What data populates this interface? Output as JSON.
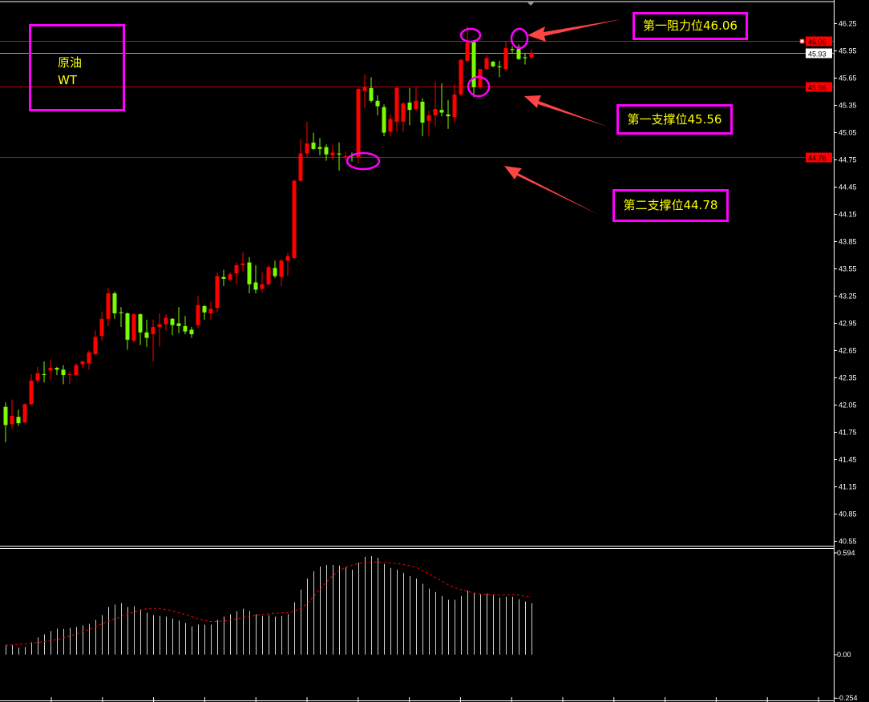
{
  "annotations": {
    "title_line1": "原油",
    "title_line2": "WT",
    "resistance1": "第一阻力位46.06",
    "support1": "第一支撑位45.56",
    "support2": "第二支撑位44.78"
  },
  "colors": {
    "up": "#ff0000",
    "down": "#7cfc00",
    "box": "#ff00ff",
    "text": "#ffff00",
    "arrow": "#ff4444",
    "level": "#ff0000",
    "bid": "#a0a0a0"
  },
  "chart_data": [
    {
      "type": "candlestick",
      "ylim": [
        40.51,
        46.51
      ],
      "yticks": [
        "46.25",
        "45.95",
        "45.65",
        "45.35",
        "45.05",
        "44.75",
        "44.45",
        "44.15",
        "43.85",
        "43.55",
        "43.25",
        "42.95",
        "42.65",
        "42.35",
        "42.05",
        "41.75",
        "41.45",
        "41.15",
        "40.85",
        "40.55"
      ],
      "levels": [
        {
          "value": 46.06,
          "label": "46.06",
          "kind": "resistance"
        },
        {
          "value": 45.93,
          "label": "45.93",
          "kind": "last-price"
        },
        {
          "value": 45.56,
          "label": "45.56",
          "kind": "support"
        },
        {
          "value": 44.78,
          "label": "44.78",
          "kind": "support"
        }
      ],
      "ohlc": [
        [
          42.03,
          42.08,
          41.64,
          41.83
        ],
        [
          41.84,
          42.11,
          41.79,
          41.93
        ],
        [
          41.92,
          42.0,
          41.82,
          41.85
        ],
        [
          41.86,
          42.07,
          41.85,
          42.06
        ],
        [
          42.06,
          42.39,
          42.05,
          42.32
        ],
        [
          42.32,
          42.47,
          42.29,
          42.4
        ],
        [
          42.39,
          42.53,
          42.3,
          42.38
        ],
        [
          42.43,
          42.55,
          42.33,
          42.46
        ],
        [
          42.46,
          42.47,
          42.38,
          42.44
        ],
        [
          42.44,
          42.49,
          42.28,
          42.38
        ],
        [
          42.38,
          42.42,
          42.28,
          42.39
        ],
        [
          42.38,
          42.51,
          42.37,
          42.49
        ],
        [
          42.5,
          42.54,
          42.46,
          42.53
        ],
        [
          42.51,
          42.65,
          42.44,
          42.63
        ],
        [
          42.61,
          42.87,
          42.6,
          42.8
        ],
        [
          42.81,
          43.08,
          42.76,
          43.0
        ],
        [
          43.0,
          43.34,
          42.92,
          43.28
        ],
        [
          43.28,
          43.3,
          43.0,
          43.06
        ],
        [
          43.07,
          43.13,
          42.91,
          43.06
        ],
        [
          43.06,
          43.07,
          42.66,
          42.77
        ],
        [
          42.76,
          43.06,
          42.74,
          43.05
        ],
        [
          43.05,
          43.06,
          42.71,
          42.85
        ],
        [
          42.85,
          42.99,
          42.69,
          42.79
        ],
        [
          42.83,
          42.99,
          42.53,
          42.91
        ],
        [
          42.91,
          43.06,
          42.69,
          42.94
        ],
        [
          42.94,
          43.05,
          42.87,
          43.01
        ],
        [
          43.0,
          43.01,
          42.82,
          42.93
        ],
        [
          42.95,
          43.13,
          42.84,
          42.92
        ],
        [
          42.92,
          43.03,
          42.83,
          42.86
        ],
        [
          42.88,
          42.91,
          42.79,
          42.83
        ],
        [
          42.93,
          43.25,
          42.9,
          43.15
        ],
        [
          43.14,
          43.15,
          42.99,
          43.07
        ],
        [
          43.06,
          43.19,
          42.99,
          43.11
        ],
        [
          43.12,
          43.51,
          43.07,
          43.47
        ],
        [
          43.46,
          43.54,
          43.36,
          43.44
        ],
        [
          43.43,
          43.51,
          43.42,
          43.49
        ],
        [
          43.5,
          43.62,
          43.38,
          43.59
        ],
        [
          43.59,
          43.73,
          43.52,
          43.61
        ],
        [
          43.62,
          43.68,
          43.28,
          43.38
        ],
        [
          43.4,
          43.59,
          43.28,
          43.32
        ],
        [
          43.33,
          43.51,
          43.29,
          43.38
        ],
        [
          43.38,
          43.59,
          43.37,
          43.57
        ],
        [
          43.56,
          43.64,
          43.45,
          43.47
        ],
        [
          43.46,
          43.66,
          43.36,
          43.64
        ],
        [
          43.64,
          43.73,
          43.47,
          43.69
        ],
        [
          43.67,
          44.53,
          43.66,
          44.52
        ],
        [
          44.52,
          44.98,
          44.51,
          44.82
        ],
        [
          44.82,
          45.17,
          44.78,
          44.93
        ],
        [
          44.94,
          45.05,
          44.86,
          44.87
        ],
        [
          44.89,
          44.99,
          44.8,
          44.87
        ],
        [
          44.89,
          44.92,
          44.74,
          44.81
        ],
        [
          44.8,
          44.91,
          44.75,
          44.83
        ],
        [
          44.82,
          44.94,
          44.63,
          44.81
        ],
        [
          44.78,
          44.84,
          44.75,
          44.79
        ],
        [
          44.8,
          44.83,
          44.73,
          44.79
        ],
        [
          44.78,
          45.54,
          44.71,
          45.53
        ],
        [
          45.51,
          45.69,
          45.32,
          45.55
        ],
        [
          45.54,
          45.66,
          45.38,
          45.4
        ],
        [
          45.4,
          45.46,
          45.24,
          45.34
        ],
        [
          45.33,
          45.36,
          45.01,
          45.05
        ],
        [
          45.06,
          45.25,
          45.01,
          45.2
        ],
        [
          45.17,
          45.55,
          45.06,
          45.54
        ],
        [
          45.17,
          45.39,
          45.06,
          45.37
        ],
        [
          45.38,
          45.54,
          45.13,
          45.3
        ],
        [
          45.31,
          45.55,
          45.29,
          45.4
        ],
        [
          45.39,
          45.43,
          45.01,
          45.16
        ],
        [
          45.18,
          45.29,
          45.01,
          45.24
        ],
        [
          45.24,
          45.61,
          45.12,
          45.31
        ],
        [
          45.3,
          45.59,
          45.23,
          45.27
        ],
        [
          45.25,
          45.41,
          45.09,
          45.23
        ],
        [
          45.22,
          45.58,
          45.16,
          45.47
        ],
        [
          45.47,
          45.86,
          45.45,
          45.85
        ],
        [
          45.84,
          46.22,
          45.82,
          46.04
        ],
        [
          46.05,
          46.07,
          45.44,
          45.55
        ],
        [
          45.55,
          45.75,
          45.53,
          45.75
        ],
        [
          45.75,
          45.9,
          45.74,
          45.87
        ],
        [
          45.83,
          45.84,
          45.77,
          45.78
        ],
        [
          45.78,
          45.84,
          45.66,
          45.77
        ],
        [
          45.75,
          46.05,
          45.73,
          45.98
        ],
        [
          45.97,
          46.0,
          45.92,
          45.96
        ],
        [
          45.97,
          46.02,
          45.85,
          45.86
        ],
        [
          45.88,
          45.92,
          45.8,
          45.87
        ],
        [
          45.88,
          45.97,
          45.86,
          45.93
        ]
      ]
    },
    {
      "type": "bar+line",
      "ylim": [
        -0.267,
        0.622
      ],
      "yticks": [
        {
          "value": 0.594,
          "label": "0.594"
        },
        {
          "value": 0.0,
          "label": "0.00"
        },
        {
          "value": -0.254,
          "label": "-0.254"
        }
      ],
      "histogram": [
        0.059,
        0.056,
        0.04,
        0.045,
        0.073,
        0.101,
        0.119,
        0.138,
        0.152,
        0.15,
        0.157,
        0.161,
        0.171,
        0.18,
        0.203,
        0.231,
        0.278,
        0.292,
        0.301,
        0.278,
        0.282,
        0.264,
        0.245,
        0.231,
        0.226,
        0.222,
        0.212,
        0.199,
        0.185,
        0.166,
        0.175,
        0.175,
        0.175,
        0.203,
        0.222,
        0.236,
        0.254,
        0.268,
        0.254,
        0.236,
        0.226,
        0.231,
        0.222,
        0.226,
        0.236,
        0.306,
        0.38,
        0.445,
        0.487,
        0.515,
        0.524,
        0.524,
        0.52,
        0.51,
        0.496,
        0.538,
        0.571,
        0.575,
        0.566,
        0.529,
        0.506,
        0.496,
        0.478,
        0.459,
        0.445,
        0.413,
        0.385,
        0.366,
        0.343,
        0.32,
        0.32,
        0.343,
        0.375,
        0.361,
        0.352,
        0.357,
        0.347,
        0.333,
        0.338,
        0.338,
        0.324,
        0.31,
        0.301
      ],
      "signal": [
        0.054,
        0.057,
        0.06,
        0.062,
        0.067,
        0.071,
        0.076,
        0.081,
        0.088,
        0.098,
        0.109,
        0.121,
        0.133,
        0.147,
        0.163,
        0.18,
        0.195,
        0.208,
        0.222,
        0.237,
        0.25,
        0.261,
        0.268,
        0.271,
        0.268,
        0.264,
        0.256,
        0.245,
        0.234,
        0.222,
        0.209,
        0.2,
        0.194,
        0.194,
        0.197,
        0.202,
        0.209,
        0.217,
        0.223,
        0.23,
        0.234,
        0.239,
        0.242,
        0.244,
        0.245,
        0.253,
        0.271,
        0.299,
        0.338,
        0.382,
        0.423,
        0.461,
        0.49,
        0.51,
        0.523,
        0.532,
        0.538,
        0.541,
        0.541,
        0.538,
        0.535,
        0.532,
        0.526,
        0.52,
        0.51,
        0.492,
        0.473,
        0.451,
        0.43,
        0.408,
        0.392,
        0.38,
        0.369,
        0.361,
        0.355,
        0.352,
        0.351,
        0.349,
        0.349,
        0.351,
        0.348,
        0.341,
        0.336
      ]
    }
  ]
}
